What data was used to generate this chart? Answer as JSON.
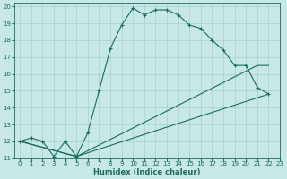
{
  "xlabel": "Humidex (Indice chaleur)",
  "xlim": [
    -0.5,
    23
  ],
  "ylim": [
    11,
    20.2
  ],
  "xticks": [
    0,
    1,
    2,
    3,
    4,
    5,
    6,
    7,
    8,
    9,
    10,
    11,
    12,
    13,
    14,
    15,
    16,
    17,
    18,
    19,
    20,
    21,
    22,
    23
  ],
  "yticks": [
    11,
    12,
    13,
    14,
    15,
    16,
    17,
    18,
    19,
    20
  ],
  "bg_color": "#c8e8e8",
  "line_color": "#1a6b5a",
  "grid_color": "#a8cfcf",
  "series1_x": [
    0,
    1,
    2,
    3,
    4,
    5,
    6,
    7,
    8,
    9,
    10,
    11,
    12,
    13,
    14,
    15,
    16,
    17,
    18,
    19,
    20,
    21,
    22
  ],
  "series1_y": [
    12.0,
    12.2,
    12.0,
    11.1,
    12.0,
    11.1,
    12.5,
    15.0,
    17.5,
    18.9,
    19.9,
    19.5,
    19.8,
    19.8,
    19.5,
    18.9,
    18.7,
    18.0,
    17.4,
    16.5,
    16.5,
    15.2,
    14.8
  ],
  "series2_x": [
    0,
    5,
    21,
    22
  ],
  "series2_y": [
    12.0,
    11.1,
    16.5,
    16.5
  ],
  "series3_x": [
    0,
    5,
    22
  ],
  "series3_y": [
    12.0,
    11.1,
    14.8
  ]
}
